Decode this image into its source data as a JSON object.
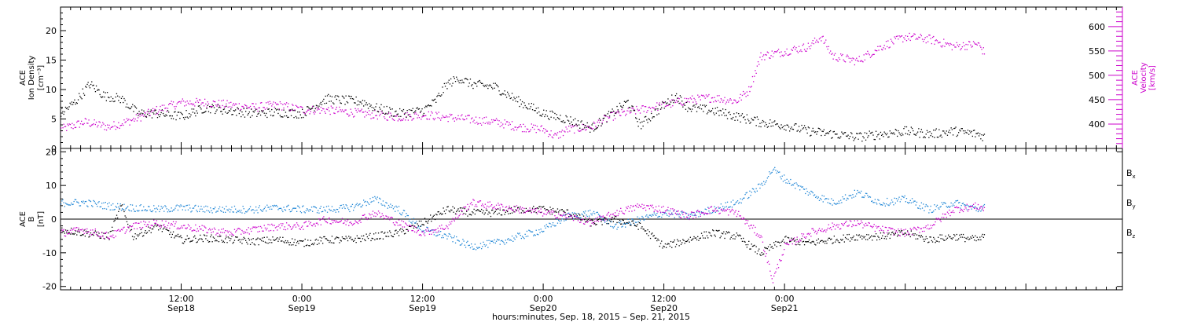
{
  "chart_data": [
    {
      "type": "scatter",
      "panel": "top",
      "left_axis": {
        "title_lines": [
          "ACE",
          "Ion Density",
          "[cm⁻³]"
        ],
        "ylim": [
          0,
          24
        ],
        "ticks": [
          0,
          5,
          10,
          15,
          20
        ],
        "color": "#000000"
      },
      "right_axis": {
        "title_lines": [
          "ACE",
          "Velocity",
          "[km/s]"
        ],
        "ylim": [
          350,
          640
        ],
        "ticks": [
          400,
          450,
          500,
          550,
          600
        ],
        "color": "#cc00cc"
      },
      "series": [
        {
          "axis": "left",
          "color": "#000000",
          "points": [
            [
              0,
              6
            ],
            [
              0.06,
              8
            ],
            [
              0.12,
              11
            ],
            [
              0.18,
              9
            ],
            [
              0.25,
              8.5
            ],
            [
              0.32,
              6
            ],
            [
              0.4,
              6
            ],
            [
              0.5,
              5.5
            ],
            [
              0.6,
              7
            ],
            [
              0.7,
              6.5
            ],
            [
              0.8,
              6
            ],
            [
              0.9,
              6.2
            ],
            [
              1.0,
              6
            ],
            [
              1.1,
              8.5
            ],
            [
              1.25,
              8
            ],
            [
              1.3,
              7
            ],
            [
              1.4,
              6
            ],
            [
              1.5,
              6.5
            ],
            [
              1.55,
              8
            ],
            [
              1.6,
              11
            ],
            [
              1.65,
              12
            ],
            [
              1.7,
              11
            ],
            [
              1.8,
              10.5
            ],
            [
              1.9,
              8
            ],
            [
              2.0,
              6
            ],
            [
              2.1,
              5
            ],
            [
              2.2,
              3.5
            ],
            [
              2.3,
              6.5
            ],
            [
              2.35,
              8
            ],
            [
              2.4,
              4
            ],
            [
              2.5,
              7.5
            ],
            [
              2.55,
              9
            ],
            [
              2.6,
              7
            ],
            [
              2.7,
              6.5
            ],
            [
              2.8,
              5.5
            ],
            [
              2.9,
              4.5
            ],
            [
              3.0,
              4
            ],
            [
              3.1,
              3
            ],
            [
              3.2,
              2.5
            ],
            [
              3.3,
              2
            ],
            [
              3.4,
              2.5
            ],
            [
              3.5,
              3
            ],
            [
              3.6,
              2.5
            ],
            [
              3.7,
              3
            ],
            [
              3.8,
              2.5
            ],
            [
              3.83,
              2
            ]
          ]
        },
        {
          "axis": "right",
          "color": "#cc00cc",
          "points": [
            [
              0,
              390
            ],
            [
              0.1,
              405
            ],
            [
              0.2,
              395
            ],
            [
              0.3,
              410
            ],
            [
              0.4,
              430
            ],
            [
              0.5,
              445
            ],
            [
              0.6,
              445
            ],
            [
              0.7,
              440
            ],
            [
              0.8,
              435
            ],
            [
              0.9,
              440
            ],
            [
              1.0,
              430
            ],
            [
              1.1,
              430
            ],
            [
              1.2,
              425
            ],
            [
              1.3,
              420
            ],
            [
              1.4,
              415
            ],
            [
              1.5,
              420
            ],
            [
              1.6,
              415
            ],
            [
              1.7,
              410
            ],
            [
              1.8,
              405
            ],
            [
              1.9,
              395
            ],
            [
              2.0,
              390
            ],
            [
              2.05,
              375
            ],
            [
              2.1,
              390
            ],
            [
              2.2,
              395
            ],
            [
              2.25,
              410
            ],
            [
              2.3,
              420
            ],
            [
              2.4,
              430
            ],
            [
              2.5,
              440
            ],
            [
              2.6,
              450
            ],
            [
              2.7,
              455
            ],
            [
              2.8,
              448
            ],
            [
              2.85,
              470
            ],
            [
              2.9,
              540
            ],
            [
              3.0,
              550
            ],
            [
              3.1,
              560
            ],
            [
              3.15,
              580
            ],
            [
              3.2,
              540
            ],
            [
              3.3,
              530
            ],
            [
              3.4,
              560
            ],
            [
              3.5,
              580
            ],
            [
              3.6,
              575
            ],
            [
              3.7,
              560
            ],
            [
              3.8,
              565
            ],
            [
              3.83,
              545
            ]
          ]
        }
      ],
      "x_ticks": [
        {
          "time": "12:00",
          "date": "Sep18"
        },
        {
          "time": "0:00",
          "date": "Sep19"
        },
        {
          "time": "12:00",
          "date": "Sep19"
        },
        {
          "time": "0:00",
          "date": "Sep20"
        },
        {
          "time": "12:00",
          "date": "Sep20"
        },
        {
          "time": "0:00",
          "date": "Sep21"
        }
      ]
    },
    {
      "type": "scatter",
      "panel": "bottom",
      "left_axis": {
        "title_lines": [
          "ACE",
          "B",
          "[nT]"
        ],
        "ylim": [
          -21,
          21
        ],
        "ticks": [
          -20,
          -10,
          0,
          10,
          20
        ],
        "color": "#000000"
      },
      "series": [
        {
          "name": "Bx",
          "label_main": "B",
          "label_sub": "x",
          "color": "#000000",
          "points": [
            [
              0,
              -3
            ],
            [
              0.1,
              -4
            ],
            [
              0.2,
              -5
            ],
            [
              0.25,
              4
            ],
            [
              0.3,
              -5
            ],
            [
              0.4,
              -2
            ],
            [
              0.5,
              -6
            ],
            [
              0.6,
              -5.5
            ],
            [
              0.7,
              -6
            ],
            [
              0.8,
              -6.5
            ],
            [
              0.9,
              -6
            ],
            [
              1.0,
              -7
            ],
            [
              1.1,
              -6
            ],
            [
              1.2,
              -6
            ],
            [
              1.3,
              -5
            ],
            [
              1.4,
              -4
            ],
            [
              1.5,
              -1
            ],
            [
              1.6,
              3
            ],
            [
              1.7,
              2
            ],
            [
              1.8,
              2
            ],
            [
              1.9,
              3
            ],
            [
              2.0,
              3
            ],
            [
              2.1,
              2
            ],
            [
              2.2,
              -1
            ],
            [
              2.3,
              0
            ],
            [
              2.4,
              -2
            ],
            [
              2.5,
              -8
            ],
            [
              2.6,
              -6
            ],
            [
              2.7,
              -4
            ],
            [
              2.8,
              -5
            ],
            [
              2.9,
              -10
            ],
            [
              3.0,
              -6
            ],
            [
              3.1,
              -7
            ],
            [
              3.2,
              -6
            ],
            [
              3.3,
              -5
            ],
            [
              3.4,
              -5
            ],
            [
              3.5,
              -4
            ],
            [
              3.6,
              -6
            ],
            [
              3.7,
              -5
            ],
            [
              3.8,
              -6
            ],
            [
              3.83,
              -5
            ]
          ]
        },
        {
          "name": "By",
          "label_main": "B",
          "label_sub": "y",
          "color": "#1f86d6",
          "points": [
            [
              0,
              5
            ],
            [
              0.1,
              5
            ],
            [
              0.2,
              4
            ],
            [
              0.3,
              3.5
            ],
            [
              0.4,
              3
            ],
            [
              0.5,
              3.5
            ],
            [
              0.6,
              3
            ],
            [
              0.7,
              3
            ],
            [
              0.8,
              3
            ],
            [
              0.9,
              3.5
            ],
            [
              1.0,
              3
            ],
            [
              1.1,
              3
            ],
            [
              1.2,
              3.5
            ],
            [
              1.3,
              6
            ],
            [
              1.4,
              3
            ],
            [
              1.5,
              -3
            ],
            [
              1.6,
              -5
            ],
            [
              1.7,
              -8
            ],
            [
              1.8,
              -7
            ],
            [
              1.9,
              -5
            ],
            [
              2.0,
              -3
            ],
            [
              2.1,
              1
            ],
            [
              2.2,
              2
            ],
            [
              2.3,
              -2
            ],
            [
              2.4,
              0
            ],
            [
              2.5,
              2
            ],
            [
              2.6,
              1
            ],
            [
              2.7,
              3
            ],
            [
              2.8,
              5
            ],
            [
              2.9,
              10
            ],
            [
              2.95,
              15
            ],
            [
              3.0,
              12
            ],
            [
              3.1,
              8
            ],
            [
              3.2,
              5
            ],
            [
              3.3,
              8
            ],
            [
              3.4,
              5
            ],
            [
              3.5,
              6
            ],
            [
              3.6,
              3
            ],
            [
              3.7,
              5
            ],
            [
              3.8,
              3
            ],
            [
              3.83,
              4
            ]
          ]
        },
        {
          "name": "Bz",
          "label_main": "B",
          "label_sub": "z",
          "color": "#cc00cc",
          "points": [
            [
              0,
              -4
            ],
            [
              0.1,
              -3
            ],
            [
              0.2,
              -5
            ],
            [
              0.3,
              -2
            ],
            [
              0.4,
              -1
            ],
            [
              0.5,
              -2
            ],
            [
              0.6,
              -3
            ],
            [
              0.7,
              -4
            ],
            [
              0.8,
              -3
            ],
            [
              0.9,
              -2
            ],
            [
              1.0,
              -2
            ],
            [
              1.1,
              0
            ],
            [
              1.2,
              -1
            ],
            [
              1.3,
              2
            ],
            [
              1.4,
              -1
            ],
            [
              1.5,
              -4
            ],
            [
              1.6,
              -2
            ],
            [
              1.7,
              5
            ],
            [
              1.8,
              4
            ],
            [
              1.9,
              3
            ],
            [
              2.0,
              2
            ],
            [
              2.1,
              1
            ],
            [
              2.2,
              -1
            ],
            [
              2.3,
              2
            ],
            [
              2.4,
              4
            ],
            [
              2.5,
              3
            ],
            [
              2.6,
              1
            ],
            [
              2.7,
              3
            ],
            [
              2.8,
              2
            ],
            [
              2.9,
              -5
            ],
            [
              2.95,
              -18
            ],
            [
              3.0,
              -8
            ],
            [
              3.1,
              -4
            ],
            [
              3.2,
              -2
            ],
            [
              3.3,
              -1
            ],
            [
              3.4,
              -3
            ],
            [
              3.5,
              -4
            ],
            [
              3.6,
              -2
            ],
            [
              3.7,
              3
            ],
            [
              3.8,
              4
            ],
            [
              3.83,
              3
            ]
          ]
        }
      ],
      "x_ticks": [
        {
          "time": "12:00",
          "date": "Sep18"
        },
        {
          "time": "0:00",
          "date": "Sep19"
        },
        {
          "time": "12:00",
          "date": "Sep19"
        },
        {
          "time": "0:00",
          "date": "Sep20"
        },
        {
          "time": "12:00",
          "date": "Sep20"
        },
        {
          "time": "0:00",
          "date": "Sep21"
        }
      ]
    }
  ],
  "xlabel": "hours:minutes, Sep. 18, 2015 – Sep. 21, 2015",
  "x_range_days": [
    0,
    4.4
  ],
  "x_tick_days": [
    0.5,
    1.0,
    1.5,
    2.0,
    2.5,
    3.0
  ]
}
